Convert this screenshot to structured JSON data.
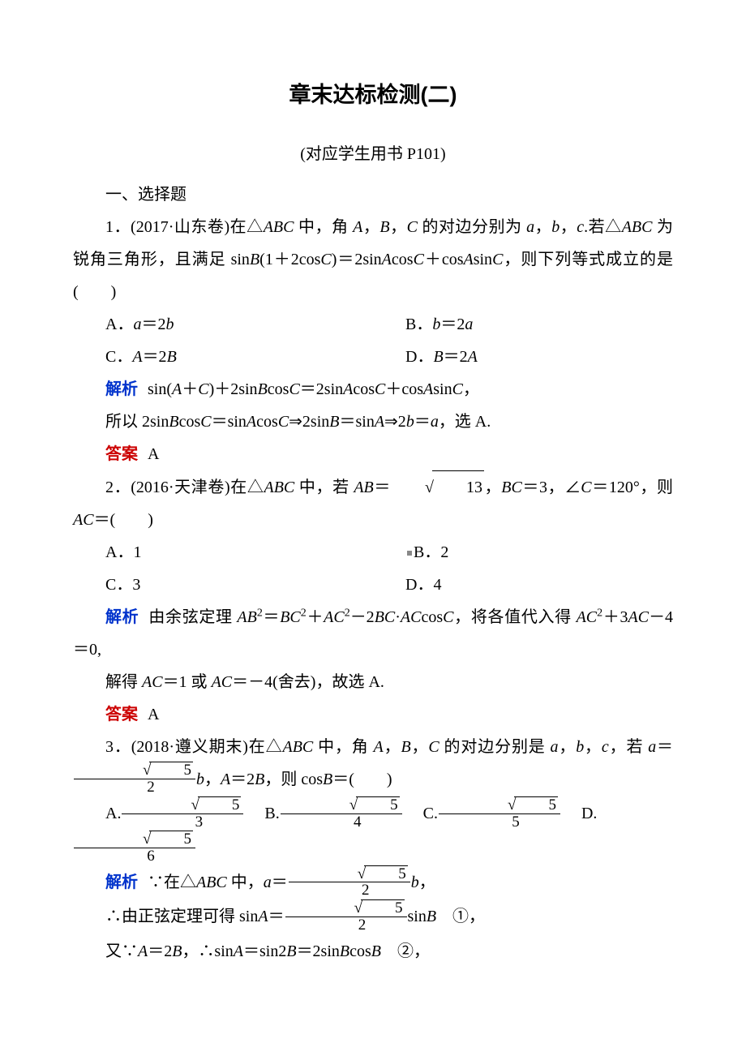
{
  "title": "章末达标检测(二)",
  "subref": "(对应学生用书 P101)",
  "section_head": "一、选择题",
  "labels": {
    "jiexi": "解析",
    "daan": "答案"
  },
  "q1": {
    "stem_a": "1．(2017·山东卷)在△",
    "stem_b": " 中，角 ",
    "stem_c": "，",
    "stem_d": "，",
    "stem_e": " 的对边分别为 ",
    "stem_f": "，",
    "stem_g": "，",
    "stem_h": ".若△",
    "stem_i": "为锐角三角形，且满足 sin",
    "stem_j": "(1＋2cos",
    "stem_k": ")＝2sin",
    "stem_l": "cos",
    "stem_m": "＋cos",
    "stem_n": "sin",
    "stem_o": "，则下列等式成立的是(　　)",
    "optA": "A．",
    "optA_eq_l": "a",
    "optA_eq_m": "＝2",
    "optA_eq_r": "b",
    "optB": "B．",
    "optB_eq_l": "b",
    "optB_eq_m": "＝2",
    "optB_eq_r": "a",
    "optC": "C．",
    "optC_eq_l": "A",
    "optC_eq_m": "＝2",
    "optC_eq_r": "B",
    "optD": "D．",
    "optD_eq_l": "B",
    "optD_eq_m": "＝2",
    "optD_eq_r": "A",
    "jiexi1_a": "sin(",
    "jiexi1_b": "＋",
    "jiexi1_c": ")＋2sin",
    "jiexi1_d": "cos",
    "jiexi1_e": "＝2sin",
    "jiexi1_f": "cos",
    "jiexi1_g": "＋cos",
    "jiexi1_h": "sin",
    "jiexi1_i": "，",
    "jiexi2_a": "所以 2sin",
    "jiexi2_b": "cos",
    "jiexi2_c": "＝sin",
    "jiexi2_d": "cos",
    "jiexi2_e": "⇒2sin",
    "jiexi2_f": "＝sin",
    "jiexi2_g": "⇒2",
    "jiexi2_h": "＝",
    "jiexi2_i": "，选 A.",
    "answer": "A"
  },
  "q2": {
    "stem_a": "2．(2016·天津卷)在△",
    "stem_b": " 中，若 ",
    "stem_c": "＝",
    "sqrt13": "13",
    "stem_d": "，",
    "stem_e": "＝3，∠",
    "stem_f": "＝120°，则 ",
    "stem_g": "＝(　　)",
    "optA": "A．1",
    "optB": "B．2",
    "optC": "C．3",
    "optD": "D．4",
    "jiexi1_a": "由余弦定理 ",
    "jiexi1_b": "＝",
    "jiexi1_c": "＋",
    "jiexi1_d": "－2",
    "jiexi1_e": "·",
    "jiexi1_f": "cos",
    "jiexi1_g": "，将各值代入得 ",
    "jiexi1_h": "＋3",
    "jiexi1_i": "－4＝0,",
    "jiexi2_a": "解得 ",
    "jiexi2_b": "＝1 或 ",
    "jiexi2_c": "＝－4(舍去)，故选 A.",
    "answer": "A"
  },
  "q3": {
    "stem_a": "3．(2018·遵义期末)在△",
    "stem_b": " 中，角 ",
    "stem_c": "，",
    "stem_d": "，",
    "stem_e": " 的对边分别是 ",
    "stem_f": "，",
    "stem_g": "，",
    "stem_h": "，若 ",
    "stem_i": "＝",
    "frac_num": "5",
    "frac_den": "2",
    "stem_j": "，",
    "stem_k": "＝2",
    "stem_l": "，则 cos",
    "stem_m": "＝(　　)",
    "optA": "A.",
    "optB": "B.",
    "optC": "C.",
    "optD": "D.",
    "den3": "3",
    "den4": "4",
    "den5": "5",
    "den6": "6",
    "jiexi1_a": "∵在△",
    "jiexi1_b": " 中，",
    "jiexi1_c": "＝",
    "jiexi1_d": "，",
    "jiexi2_a": "∴由正弦定理可得 sin",
    "jiexi2_b": "＝",
    "jiexi2_c": "sin",
    "jiexi2_d": "　①，",
    "jiexi3_a": "又∵",
    "jiexi3_b": "＝2",
    "jiexi3_c": "，∴sin",
    "jiexi3_d": "＝sin2",
    "jiexi3_e": "＝2sin",
    "jiexi3_f": "cos",
    "jiexi3_g": "　②，"
  },
  "vars": {
    "ABC": "ABC",
    "A": "A",
    "B": "B",
    "C": "C",
    "a": "a",
    "b": "b",
    "c": "c",
    "AB": "AB",
    "BC": "BC",
    "AC": "AC"
  }
}
